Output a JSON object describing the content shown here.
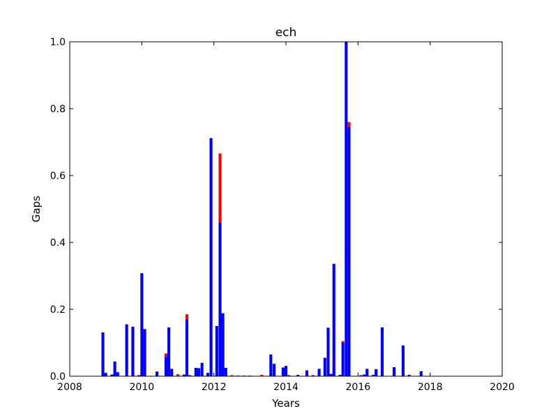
{
  "chart_data": {
    "type": "bar",
    "stacked": true,
    "title": "ech",
    "xlabel": "Years",
    "ylabel": "Gaps",
    "xlim": [
      2008,
      2020
    ],
    "ylim": [
      0,
      1.0
    ],
    "x_ticks": [
      2008,
      2010,
      2012,
      2014,
      2016,
      2018,
      2020
    ],
    "x_tick_labels": [
      "2008",
      "2010",
      "2012",
      "2014",
      "2016",
      "2018",
      "2020"
    ],
    "y_ticks": [
      0.0,
      0.2,
      0.4,
      0.6,
      0.8,
      1.0
    ],
    "y_tick_labels": [
      "0.0",
      "0.2",
      "0.4",
      "0.6",
      "0.8",
      "1.0"
    ],
    "grid": false,
    "series_colors": [
      "#0000ff",
      "#ff0000"
    ],
    "bar_width_years": 0.08,
    "x": [
      2008.92,
      2009.0,
      2009.17,
      2009.25,
      2009.33,
      2009.58,
      2009.75,
      2009.92,
      2010.0,
      2010.08,
      2010.42,
      2010.67,
      2010.75,
      2010.83,
      2011.0,
      2011.17,
      2011.25,
      2011.33,
      2011.5,
      2011.58,
      2011.67,
      2011.83,
      2011.92,
      2012.08,
      2012.17,
      2012.25,
      2012.33,
      2012.5,
      2012.67,
      2012.83,
      2013.0,
      2013.33,
      2013.58,
      2013.67,
      2013.92,
      2014.0,
      2014.08,
      2014.33,
      2014.58,
      2014.75,
      2014.92,
      2015.08,
      2015.17,
      2015.25,
      2015.33,
      2015.5,
      2015.58,
      2015.67,
      2015.75,
      2016.08,
      2016.17,
      2016.25,
      2016.42,
      2016.5,
      2016.67,
      2017.0,
      2017.25,
      2017.42,
      2017.75
    ],
    "series": [
      {
        "values": [
          0.131,
          0.01,
          0.005,
          0.044,
          0.012,
          0.155,
          0.148,
          0.003,
          0.308,
          0.141,
          0.014,
          0.058,
          0.146,
          0.022,
          0.002,
          0.005,
          0.17,
          0.003,
          0.025,
          0.024,
          0.04,
          0.01,
          0.712,
          0.15,
          0.46,
          0.188,
          0.025,
          0.001,
          0.001,
          0.001,
          0.001,
          0.002,
          0.065,
          0.037,
          0.026,
          0.031,
          0.003,
          0.004,
          0.016,
          0.003,
          0.022,
          0.055,
          0.145,
          0.007,
          0.336,
          0.004,
          0.1,
          1.0,
          0.745,
          0.003,
          0.005,
          0.022,
          0.004,
          0.021,
          0.146,
          0.027,
          0.092,
          0.004,
          0.015
        ]
      },
      {
        "values": [
          0,
          0,
          0,
          0,
          0,
          0,
          0,
          0,
          0,
          0,
          0,
          0.01,
          0,
          0,
          0.004,
          0,
          0.015,
          0,
          0,
          0,
          0,
          0,
          0,
          0,
          0.206,
          0,
          0,
          0.002,
          0.001,
          0.001,
          0.001,
          0.002,
          0,
          0,
          0,
          0,
          0,
          0,
          0.002,
          0,
          0,
          0,
          0,
          0,
          0,
          0,
          0.005,
          0,
          0.015,
          0,
          0,
          0,
          0,
          0,
          0,
          0,
          0,
          0,
          0
        ]
      }
    ]
  }
}
